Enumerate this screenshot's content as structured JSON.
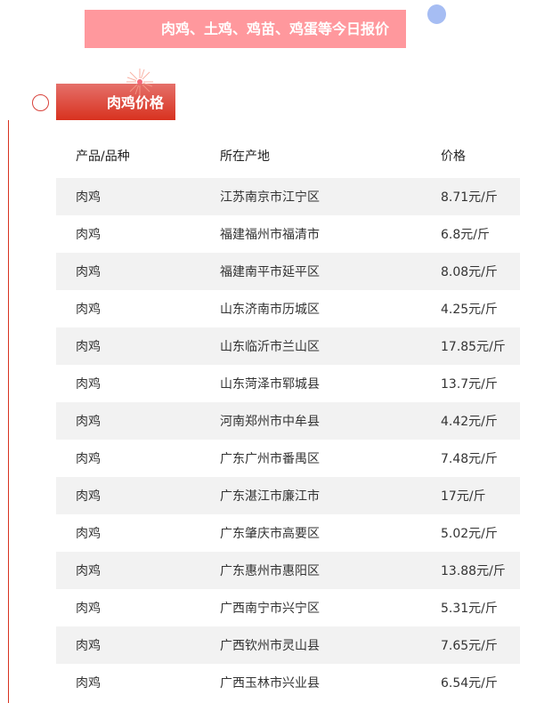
{
  "banner_title": "肉鸡、土鸡、鸡苗、鸡蛋等今日报价",
  "section_label": "肉鸡价格",
  "colors": {
    "banner": "#ff989d",
    "accent": "#d8321f",
    "dot": "#a6bdf3",
    "stripe": "#f2f2f2"
  },
  "table": {
    "headers": [
      "产品/品种",
      "所在产地",
      "价格"
    ],
    "rows": [
      [
        "肉鸡",
        "江苏南京市江宁区",
        "8.71元/斤"
      ],
      [
        "肉鸡",
        "福建福州市福清市",
        "6.8元/斤"
      ],
      [
        "肉鸡",
        "福建南平市延平区",
        "8.08元/斤"
      ],
      [
        "肉鸡",
        "山东济南市历城区",
        "4.25元/斤"
      ],
      [
        "肉鸡",
        "山东临沂市兰山区",
        "17.85元/斤"
      ],
      [
        "肉鸡",
        "山东菏泽市郓城县",
        "13.7元/斤"
      ],
      [
        "肉鸡",
        "河南郑州市中牟县",
        "4.42元/斤"
      ],
      [
        "肉鸡",
        "广东广州市番禺区",
        "7.48元/斤"
      ],
      [
        "肉鸡",
        "广东湛江市廉江市",
        "17元/斤"
      ],
      [
        "肉鸡",
        "广东肇庆市高要区",
        "5.02元/斤"
      ],
      [
        "肉鸡",
        "广东惠州市惠阳区",
        "13.88元/斤"
      ],
      [
        "肉鸡",
        "广西南宁市兴宁区",
        "5.31元/斤"
      ],
      [
        "肉鸡",
        "广西钦州市灵山县",
        "7.65元/斤"
      ],
      [
        "肉鸡",
        "广西玉林市兴业县",
        "6.54元/斤"
      ]
    ]
  }
}
